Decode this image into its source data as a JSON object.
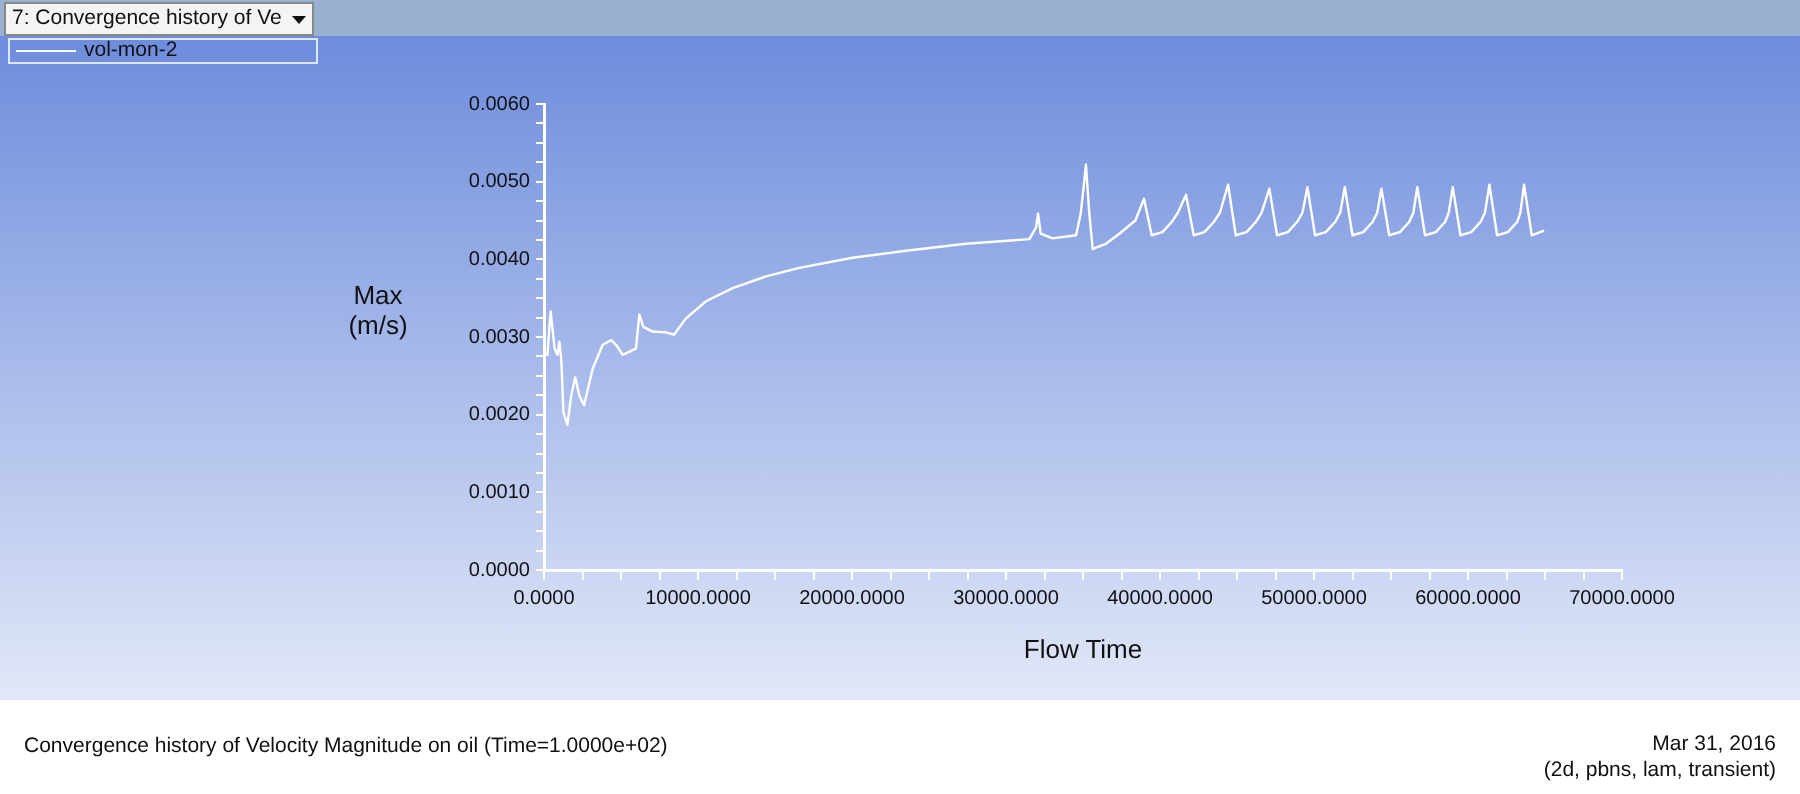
{
  "chart_data": {
    "type": "line",
    "title": "Convergence history of Velocity Magnitude on oil  (Time=1.0000e+02)",
    "xlabel": "Flow Time",
    "ylabel": "Max (m/s)",
    "annotations": [
      "7: Convergence history of Ve",
      "Mar 31, 2016",
      "(2d, pbns, lam, transient)"
    ],
    "series": [
      {
        "name": "vol-mon-2",
        "color": "#ffffff",
        "x": [
          0,
          40,
          220,
          430,
          690,
          870,
          1000,
          1130,
          1260,
          1520,
          1770,
          2030,
          2290,
          2600,
          3160,
          3810,
          4370,
          4680,
          5110,
          5970,
          6190,
          6450,
          7060,
          7920,
          8440,
          9220,
          10520,
          12250,
          14420,
          16580,
          20040,
          23510,
          27400,
          31520,
          31950,
          32080,
          32250,
          33030,
          34550,
          34850,
          35020,
          35190,
          35410,
          35630,
          35840,
          36490,
          37360,
          38400,
          38960,
          39460,
          40160,
          40760,
          41160,
          41690,
          42190,
          42890,
          43490,
          43890,
          44420,
          44920,
          45620,
          46220,
          46600,
          47100,
          47600,
          48300,
          48900,
          49250,
          49570,
          50070,
          50770,
          51370,
          51700,
          52000,
          52500,
          53200,
          53800,
          54100,
          54380,
          54880,
          55580,
          56180,
          56450,
          56710,
          57210,
          57910,
          58510,
          58750,
          59010,
          59510,
          60210,
          60810,
          61100,
          61390,
          61890,
          62590,
          63190,
          63400,
          63640,
          64140,
          64940
        ],
        "values": [
          0.00181,
          0.00277,
          0.00277,
          0.00333,
          0.00285,
          0.00277,
          0.00294,
          0.00268,
          0.00203,
          0.00187,
          0.00225,
          0.00248,
          0.00225,
          0.00212,
          0.00259,
          0.0029,
          0.00296,
          0.0029,
          0.00277,
          0.00285,
          0.00329,
          0.00313,
          0.00307,
          0.00306,
          0.00303,
          0.00324,
          0.00346,
          0.00363,
          0.00378,
          0.00389,
          0.00402,
          0.00411,
          0.0042,
          0.00426,
          0.00441,
          0.00459,
          0.00433,
          0.00427,
          0.00431,
          0.00459,
          0.00489,
          0.00522,
          0.00459,
          0.00413,
          0.00415,
          0.0042,
          0.00433,
          0.0045,
          0.00478,
          0.00431,
          0.00435,
          0.00448,
          0.0046,
          0.00483,
          0.00431,
          0.00435,
          0.00448,
          0.0046,
          0.00496,
          0.00431,
          0.00435,
          0.00448,
          0.0046,
          0.00491,
          0.00431,
          0.00435,
          0.00448,
          0.0046,
          0.00493,
          0.00431,
          0.00435,
          0.00448,
          0.0046,
          0.00493,
          0.00431,
          0.00435,
          0.00448,
          0.0046,
          0.00491,
          0.00431,
          0.00435,
          0.00448,
          0.0046,
          0.00493,
          0.00431,
          0.00435,
          0.00448,
          0.0046,
          0.00493,
          0.00431,
          0.00435,
          0.00448,
          0.0046,
          0.00496,
          0.00431,
          0.00435,
          0.00448,
          0.0046,
          0.00496,
          0.00431,
          0.00437
        ]
      }
    ],
    "xlim": [
      0,
      70000
    ],
    "xticks": [
      {
        "value": 0,
        "label": "0.0000"
      },
      {
        "value": 2500,
        "label": null
      },
      {
        "value": 5000,
        "label": null
      },
      {
        "value": 7500,
        "label": null
      },
      {
        "value": 10000,
        "label": "10000.0000"
      },
      {
        "value": 12500,
        "label": null
      },
      {
        "value": 15000,
        "label": null
      },
      {
        "value": 17500,
        "label": null
      },
      {
        "value": 20000,
        "label": "20000.0000"
      },
      {
        "value": 22500,
        "label": null
      },
      {
        "value": 25000,
        "label": null
      },
      {
        "value": 27500,
        "label": null
      },
      {
        "value": 30000,
        "label": "30000.0000"
      },
      {
        "value": 32500,
        "label": null
      },
      {
        "value": 35000,
        "label": null
      },
      {
        "value": 37500,
        "label": null
      },
      {
        "value": 40000,
        "label": "40000.0000"
      },
      {
        "value": 42500,
        "label": null
      },
      {
        "value": 45000,
        "label": null
      },
      {
        "value": 47500,
        "label": null
      },
      {
        "value": 50000,
        "label": "50000.0000"
      },
      {
        "value": 52500,
        "label": null
      },
      {
        "value": 55000,
        "label": null
      },
      {
        "value": 57500,
        "label": null
      },
      {
        "value": 60000,
        "label": "60000.0000"
      },
      {
        "value": 62500,
        "label": null
      },
      {
        "value": 65000,
        "label": null
      },
      {
        "value": 67500,
        "label": null
      },
      {
        "value": 70000,
        "label": "70000.0000"
      }
    ],
    "ylim": [
      0,
      0.006
    ],
    "yticks": [
      {
        "value": 0,
        "label": "0.0000"
      },
      {
        "value": 0.00025,
        "label": null
      },
      {
        "value": 0.0005,
        "label": null
      },
      {
        "value": 0.00075,
        "label": null
      },
      {
        "value": 0.001,
        "label": "0.0010"
      },
      {
        "value": 0.00125,
        "label": null
      },
      {
        "value": 0.0015,
        "label": null
      },
      {
        "value": 0.00175,
        "label": null
      },
      {
        "value": 0.002,
        "label": "0.0020"
      },
      {
        "value": 0.00225,
        "label": null
      },
      {
        "value": 0.0025,
        "label": null
      },
      {
        "value": 0.00275,
        "label": null
      },
      {
        "value": 0.003,
        "label": "0.0030"
      },
      {
        "value": 0.00325,
        "label": null
      },
      {
        "value": 0.0035,
        "label": null
      },
      {
        "value": 0.00375,
        "label": null
      },
      {
        "value": 0.004,
        "label": "0.0040"
      },
      {
        "value": 0.00425,
        "label": null
      },
      {
        "value": 0.0045,
        "label": null
      },
      {
        "value": 0.00475,
        "label": null
      },
      {
        "value": 0.005,
        "label": "0.0050"
      },
      {
        "value": 0.00525,
        "label": null
      },
      {
        "value": 0.0055,
        "label": null
      },
      {
        "value": 0.00575,
        "label": null
      },
      {
        "value": 0.006,
        "label": "0.0060"
      }
    ],
    "grid": false,
    "legend": "top left",
    "marker": "none",
    "line_style": "solid"
  }
}
